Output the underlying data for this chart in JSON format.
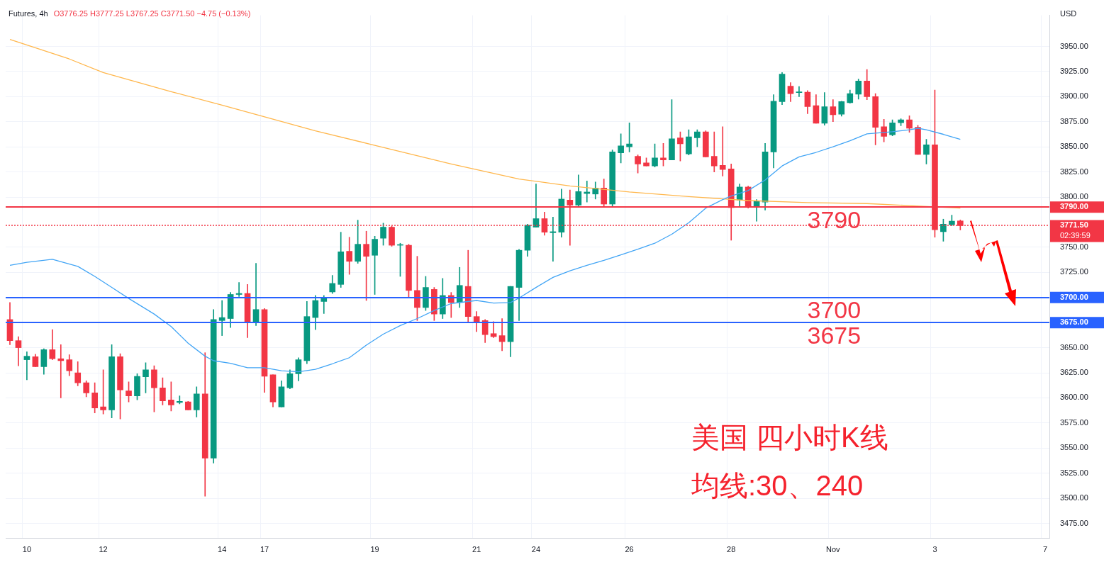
{
  "chart_data": {
    "type": "candlestick",
    "title": "Futures, 4h",
    "ylabel": "USD",
    "categories": [
      null,
      null,
      "10",
      null,
      null,
      null,
      null,
      null,
      null,
      null,
      null,
      "12",
      null,
      null,
      null,
      null,
      null,
      null,
      null,
      null,
      null,
      null,
      null,
      null,
      null,
      "14",
      null,
      null,
      null,
      null,
      "17",
      null,
      null,
      null,
      null,
      null,
      null,
      null,
      null,
      null,
      null,
      null,
      null,
      "19",
      null,
      null,
      null,
      null,
      null,
      null,
      null,
      null,
      null,
      null,
      null,
      "21",
      null,
      null,
      null,
      null,
      null,
      null,
      "24",
      null,
      null,
      null,
      null,
      null,
      null,
      null,
      null,
      null,
      null,
      "26",
      null,
      null,
      null,
      null,
      null,
      null,
      null,
      null,
      null,
      null,
      null,
      "28",
      null,
      null,
      null,
      null,
      null,
      null,
      null,
      null,
      null,
      null,
      null,
      "Nov",
      null,
      null,
      null,
      null,
      null,
      null,
      null,
      null,
      null,
      null,
      null,
      "3",
      null,
      null,
      null,
      null,
      null,
      null,
      null,
      null,
      null,
      null,
      null,
      null,
      "7"
    ],
    "ohlc": [
      [
        3678,
        3695,
        3653,
        3657
      ],
      [
        3657,
        3661,
        3632,
        3650
      ],
      [
        3638,
        3646,
        3618,
        3641.5
      ],
      [
        3641,
        3643.5,
        3631,
        3631
      ],
      [
        3631,
        3649,
        3623.5,
        3648
      ],
      [
        3648,
        3668,
        3638,
        3639
      ],
      [
        3639,
        3653,
        3600,
        3637
      ],
      [
        3638,
        3643,
        3622,
        3627
      ],
      [
        3625,
        3636,
        3612,
        3615
      ],
      [
        3615,
        3617,
        3601,
        3605
      ],
      [
        3605,
        3615,
        3585,
        3590
      ],
      [
        3591,
        3628,
        3584,
        3588
      ],
      [
        3588,
        3653,
        3580,
        3641
      ],
      [
        3641,
        3644,
        3579,
        3608
      ],
      [
        3607,
        3616,
        3596,
        3602
      ],
      [
        3602,
        3624,
        3598,
        3621.5
      ],
      [
        3621,
        3635,
        3605,
        3628
      ],
      [
        3628,
        3632,
        3586,
        3610
      ],
      [
        3610,
        3620,
        3593,
        3597
      ],
      [
        3598,
        3616,
        3587,
        3593
      ],
      [
        3595.5,
        3602,
        3594,
        3596.5
      ],
      [
        3596,
        3596.5,
        3588,
        3588
      ],
      [
        3588,
        3611,
        3581,
        3604
      ],
      [
        3604,
        3645,
        3502,
        3540
      ],
      [
        3540,
        3688,
        3535,
        3678
      ],
      [
        3677,
        3697,
        3662,
        3680
      ],
      [
        3679,
        3705,
        3670,
        3703
      ],
      [
        3703,
        3715,
        3701,
        3704
      ],
      [
        3704,
        3713,
        3660,
        3675
      ],
      [
        3675,
        3734,
        3672,
        3688
      ],
      [
        3688,
        3689,
        3605.5,
        3621.5
      ],
      [
        3623,
        3623,
        3591,
        3596
      ],
      [
        3591,
        3617,
        3591,
        3611
      ],
      [
        3610,
        3628,
        3609,
        3624
      ],
      [
        3624,
        3640,
        3617,
        3638
      ],
      [
        3637,
        3696,
        3634,
        3681
      ],
      [
        3680,
        3702,
        3668,
        3697
      ],
      [
        3696,
        3702,
        3684,
        3699
      ],
      [
        3705.5,
        3722,
        3704,
        3714
      ],
      [
        3713,
        3765,
        3710,
        3745.5
      ],
      [
        3746,
        3760,
        3723,
        3736
      ],
      [
        3736,
        3777,
        3734,
        3753
      ],
      [
        3753,
        3766,
        3697,
        3741
      ],
      [
        3742,
        3761,
        3703,
        3758
      ],
      [
        3759,
        3774,
        3752,
        3770
      ],
      [
        3770,
        3771,
        3751,
        3752
      ],
      [
        3752,
        3754,
        3721,
        3752.5
      ],
      [
        3752,
        3753,
        3700,
        3707
      ],
      [
        3707,
        3741,
        3677,
        3690
      ],
      [
        3690,
        3721,
        3687,
        3710
      ],
      [
        3708,
        3710,
        3677,
        3683.5
      ],
      [
        3683.5,
        3719,
        3679,
        3702
      ],
      [
        3702,
        3705,
        3680,
        3695
      ],
      [
        3695,
        3730,
        3690,
        3712
      ],
      [
        3711,
        3747,
        3675,
        3681
      ],
      [
        3681,
        3686,
        3666,
        3676
      ],
      [
        3677,
        3678,
        3655,
        3663
      ],
      [
        3664,
        3676,
        3660,
        3661
      ],
      [
        3662,
        3679,
        3647,
        3656
      ],
      [
        3656,
        3711,
        3641,
        3711
      ],
      [
        3710,
        3748,
        3677,
        3747
      ],
      [
        3747,
        3773,
        3741,
        3772
      ],
      [
        3770,
        3813,
        3770,
        3778.5
      ],
      [
        3778.5,
        3785,
        3762,
        3765
      ],
      [
        3764.5,
        3780,
        3736,
        3765.5
      ],
      [
        3765,
        3808,
        3760,
        3798
      ],
      [
        3797,
        3807,
        3752,
        3792
      ],
      [
        3792,
        3822,
        3791,
        3805.5
      ],
      [
        3803.5,
        3816,
        3795,
        3805
      ],
      [
        3803,
        3815,
        3798,
        3809
      ],
      [
        3809,
        3818,
        3790,
        3793
      ],
      [
        3793,
        3847,
        3790,
        3845
      ],
      [
        3844,
        3863,
        3834,
        3851
      ],
      [
        3850,
        3874,
        3845,
        3853
      ],
      [
        3840.5,
        3842,
        3824,
        3833
      ],
      [
        3834,
        3839,
        3831,
        3831
      ],
      [
        3831,
        3853,
        3830,
        3839
      ],
      [
        3839,
        3853.5,
        3831,
        3837
      ],
      [
        3837,
        3897,
        3837,
        3858
      ],
      [
        3859,
        3865,
        3836,
        3853
      ],
      [
        3843,
        3867,
        3842,
        3860
      ],
      [
        3859,
        3867,
        3850,
        3865
      ],
      [
        3865,
        3866,
        3840,
        3840
      ],
      [
        3840.5,
        3865,
        3825,
        3831
      ],
      [
        3831.5,
        3870,
        3821,
        3827.5
      ],
      [
        3828,
        3833,
        3757,
        3789.5
      ],
      [
        3797,
        3813,
        3790,
        3810
      ],
      [
        3810,
        3811,
        3789,
        3790
      ],
      [
        3790,
        3797.5,
        3776,
        3796
      ],
      [
        3795,
        3853.5,
        3787,
        3845
      ],
      [
        3845,
        3902,
        3829,
        3895.5
      ],
      [
        3895,
        3924,
        3892,
        3922.5
      ],
      [
        3910.5,
        3914,
        3895,
        3903
      ],
      [
        3904,
        3910,
        3900,
        3904.5
      ],
      [
        3904.5,
        3906,
        3883,
        3890
      ],
      [
        3891,
        3902,
        3873.5,
        3873.5
      ],
      [
        3873.5,
        3904,
        3871.5,
        3890
      ],
      [
        3890,
        3897,
        3875,
        3882
      ],
      [
        3882.5,
        3895.5,
        3880.5,
        3895
      ],
      [
        3894,
        3906.5,
        3893.5,
        3903
      ],
      [
        3902.5,
        3917.5,
        3897.5,
        3915.5
      ],
      [
        3915.5,
        3927,
        3897,
        3900
      ],
      [
        3900,
        3903,
        3852,
        3869.5
      ],
      [
        3870,
        3877.5,
        3855,
        3860.5
      ],
      [
        3862,
        3877,
        3861,
        3874
      ],
      [
        3874,
        3878,
        3871,
        3877
      ],
      [
        3877,
        3881,
        3864.5,
        3868.5
      ],
      [
        3869.5,
        3871.5,
        3842.5,
        3842.5
      ],
      [
        3842.5,
        3857.5,
        3833,
        3852
      ],
      [
        3852,
        3906.5,
        3760,
        3767.5
      ],
      [
        3765.5,
        3778,
        3756,
        3773
      ],
      [
        3772.5,
        3782,
        3771.5,
        3776
      ],
      [
        3776.25,
        3777.25,
        3767.25,
        3771.5
      ],
      null,
      null,
      null,
      null,
      null,
      null,
      null,
      null,
      null,
      null
    ],
    "colors": [
      "#f23645",
      "#f23645",
      "#089981",
      "#f23645",
      "#089981",
      "#f23645",
      "#f23645",
      "#f23645",
      "#f23645",
      "#f23645",
      "#f23645",
      "#f23645",
      "#089981",
      "#f23645",
      "#f23645",
      "#089981",
      "#089981",
      "#f23645",
      "#f23645",
      "#f23645",
      "#089981",
      "#f23645",
      "#089981",
      "#f23645",
      "#089981",
      "#089981",
      "#089981",
      "#089981",
      "#f23645",
      "#089981",
      "#f23645",
      "#f23645",
      "#089981",
      "#089981",
      "#089981",
      "#089981",
      "#089981",
      "#089981",
      "#089981",
      "#089981",
      "#f23645",
      "#089981",
      "#f23645",
      "#089981",
      "#089981",
      "#f23645",
      "#089981",
      "#f23645",
      "#f23645",
      "#089981",
      "#f23645",
      "#089981",
      "#f23645",
      "#089981",
      "#f23645",
      "#f23645",
      "#f23645",
      "#f23645",
      "#f23645",
      "#089981",
      "#089981",
      "#089981",
      "#089981",
      "#f23645",
      "#089981",
      "#089981",
      "#f23645",
      "#089981",
      "#089981",
      "#089981",
      "#f23645",
      "#089981",
      "#089981",
      "#089981",
      "#f23645",
      "#f23645",
      "#089981",
      "#f23645",
      "#089981",
      "#f23645",
      "#089981",
      "#089981",
      "#f23645",
      "#f23645",
      "#f23645",
      "#f23645",
      "#089981",
      "#f23645",
      "#089981",
      "#089981",
      "#089981",
      "#089981",
      "#f23645",
      "#089981",
      "#f23645",
      "#f23645",
      "#089981",
      "#f23645",
      "#089981",
      "#089981",
      "#089981",
      "#f23645",
      "#f23645",
      "#f23645",
      "#089981",
      "#089981",
      "#f23645",
      "#f23645",
      "#089981",
      "#f23645",
      "#089981",
      "#089981",
      "#f23645",
      null,
      null,
      null,
      null,
      null,
      null,
      null,
      null,
      null,
      null
    ],
    "series": [
      {
        "type": "line",
        "color": "#42a5f5",
        "values": [
          3732,
          null,
          3735,
          null,
          null,
          3738,
          null,
          null,
          3731,
          null,
          3721,
          null,
          3710,
          null,
          3699,
          null,
          null,
          3683.5,
          null,
          3671,
          null,
          3654.5,
          null,
          3641.5,
          3637,
          null,
          3634.5,
          null,
          3630,
          null,
          3630,
          null,
          3627,
          null,
          3626,
          null,
          3628.5,
          null,
          3634,
          null,
          3640,
          null,
          3652.5,
          null,
          3663.5,
          null,
          3672,
          null,
          3679,
          null,
          3687,
          null,
          3694,
          null,
          null,
          3697,
          null,
          3694.5,
          null,
          3695,
          3699.5,
          null,
          3710,
          null,
          3720,
          null,
          3726.5,
          null,
          3732,
          null,
          3737,
          null,
          3742.5,
          null,
          3748,
          null,
          3754,
          null,
          3763,
          null,
          3774.5,
          null,
          3789,
          null,
          3797.5,
          3801,
          null,
          3806.5,
          null,
          3817,
          null,
          3831,
          null,
          3840,
          null,
          3844.5,
          null,
          3850,
          null,
          3856,
          null,
          3863,
          null,
          null,
          3865,
          null,
          3867,
          3868.5,
          3867,
          null,
          3862.5,
          null,
          3857.5,
          null,
          null,
          null,
          null,
          null,
          null,
          null,
          null,
          null,
          null
        ]
      },
      {
        "type": "line",
        "color": "#ffb74d",
        "values": [
          3957,
          null,
          null,
          null,
          null,
          null,
          null,
          3937.5,
          null,
          null,
          null,
          3924,
          null,
          null,
          null,
          null,
          null,
          null,
          null,
          3905,
          null,
          null,
          null,
          null,
          null,
          3891.5,
          null,
          null,
          null,
          null,
          null,
          3877.5,
          null,
          null,
          null,
          null,
          3866,
          null,
          null,
          null,
          null,
          null,
          null,
          3851.5,
          null,
          null,
          null,
          null,
          null,
          null,
          null,
          null,
          3833,
          null,
          null,
          null,
          null,
          null,
          null,
          null,
          3818,
          null,
          null,
          null,
          null,
          null,
          3811,
          null,
          null,
          null,
          null,
          null,
          null,
          3805,
          null,
          null,
          null,
          null,
          null,
          null,
          3800.5,
          null,
          null,
          null,
          null,
          null,
          null,
          3796.5,
          null,
          null,
          null,
          null,
          null,
          null,
          3794.5,
          null,
          null,
          null,
          null,
          null,
          null,
          3793.5,
          null,
          null,
          null,
          null,
          3791.5,
          null,
          null,
          null,
          null,
          null,
          3789,
          null,
          null,
          null,
          null,
          null,
          null,
          null,
          null,
          null,
          null
        ]
      }
    ],
    "ylim": [
      3460,
      3981
    ],
    "yticks": [
      {
        "value": 3475,
        "label": "3475.00"
      },
      {
        "value": 3500,
        "label": "3500.00"
      },
      {
        "value": 3525,
        "label": "3525.00"
      },
      {
        "value": 3550,
        "label": "3550.00"
      },
      {
        "value": 3575,
        "label": "3575.00"
      },
      {
        "value": 3600,
        "label": "3600.00"
      },
      {
        "value": 3625,
        "label": "3625.00"
      },
      {
        "value": 3650,
        "label": "3650.00"
      },
      {
        "value": 3725,
        "label": "3725.00"
      },
      {
        "value": 3750,
        "label": "3750.00"
      },
      {
        "value": 3800,
        "label": "3800.00"
      },
      {
        "value": 3825,
        "label": "3825.00"
      },
      {
        "value": 3850,
        "label": "3850.00"
      },
      {
        "value": 3875,
        "label": "3875.00"
      },
      {
        "value": 3900,
        "label": "3900.00"
      },
      {
        "value": 3925,
        "label": "3925.00"
      },
      {
        "value": 3950,
        "label": "3950.00"
      }
    ],
    "ref_lines": [
      {
        "axis": "y",
        "value": 3790,
        "label": "3790.00",
        "color": "#f23645"
      },
      {
        "axis": "y",
        "value": 3700,
        "label": "3700.00",
        "color": "#2962ff"
      },
      {
        "axis": "y",
        "value": 3675,
        "label": "3675.00",
        "color": "#2962ff"
      },
      {
        "axis": "y",
        "value": 3771.5,
        "label": "3771.50",
        "color": "#f23645",
        "line_style": "dotted"
      }
    ],
    "annotations": [
      "O3776.25 H3777.25 L3767.25 C3771.50 −4.75 (−0.13%)",
      {
        "text": "3790",
        "y": 3790
      },
      {
        "text": "3700",
        "y": 3700
      },
      {
        "text": "3675",
        "y": 3675
      },
      "02:39:59",
      "美国 四小时K线",
      "均线:30、240"
    ],
    "grid": true,
    "legend": false
  }
}
